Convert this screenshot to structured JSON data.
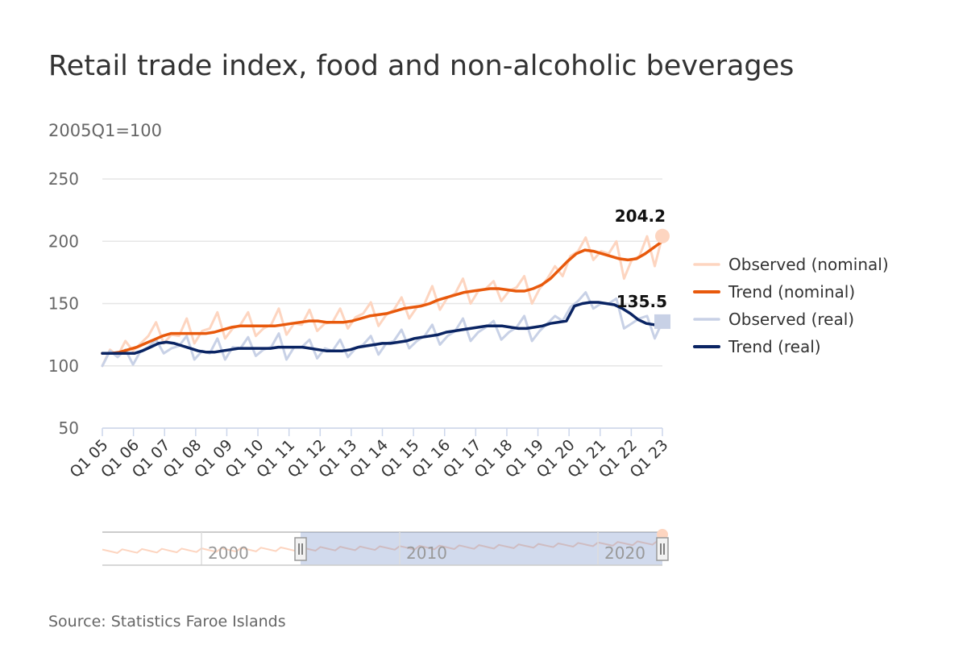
{
  "title": "Retail trade index, food and non-alcoholic beverages",
  "subtitle": "2005Q1=100",
  "source": "Source: Statistics Faroe Islands",
  "chart_data": {
    "type": "line",
    "title": "Retail trade index, food and non-alcoholic beverages",
    "ylabel": "2005Q1=100",
    "ylim": [
      50,
      250
    ],
    "yticks": [
      50,
      100,
      150,
      200,
      250
    ],
    "xlabels": [
      "Q1 05",
      "Q1 06",
      "Q1 07",
      "Q1 08",
      "Q1 09",
      "Q1 10",
      "Q1 11",
      "Q1 12",
      "Q1 13",
      "Q1 14",
      "Q1 15",
      "Q1 16",
      "Q1 17",
      "Q1 18",
      "Q1 19",
      "Q1 20",
      "Q1 21",
      "Q1 22",
      "Q1 23"
    ],
    "x_start_quarter": "2005Q1",
    "x_end_quarter": "2023Q1",
    "grid": true,
    "legend_position": "right",
    "series": [
      {
        "name": "Observed (nominal)",
        "color": "#fdd5c0",
        "width": 3,
        "values": [
          100,
          113,
          108,
          120,
          112,
          118,
          124,
          135,
          118,
          125,
          124,
          138,
          118,
          128,
          130,
          143,
          122,
          130,
          133,
          143,
          124,
          130,
          133,
          146,
          125,
          134,
          133,
          145,
          128,
          134,
          135,
          146,
          130,
          139,
          142,
          151,
          132,
          141,
          145,
          155,
          138,
          147,
          150,
          164,
          145,
          155,
          158,
          170,
          150,
          160,
          162,
          168,
          152,
          160,
          163,
          172,
          150,
          162,
          170,
          180,
          172,
          188,
          192,
          203,
          185,
          192,
          190,
          200,
          170,
          185,
          188,
          204,
          180,
          204.2
        ]
      },
      {
        "name": "Trend (nominal)",
        "color": "#e8590c",
        "width": 3.5,
        "values": [
          110,
          110,
          111,
          113,
          115,
          118,
          121,
          124,
          126,
          126,
          126,
          126,
          126,
          127,
          129,
          131,
          132,
          132,
          132,
          132,
          132,
          133,
          134,
          135,
          136,
          136,
          135,
          135,
          135,
          136,
          138,
          140,
          141,
          142,
          144,
          146,
          147,
          148,
          150,
          153,
          155,
          157,
          159,
          160,
          161,
          162,
          162,
          161,
          160,
          160,
          162,
          165,
          170,
          177,
          184,
          190,
          193,
          192,
          190,
          188,
          186,
          185,
          186,
          190,
          195,
          200
        ]
      },
      {
        "name": "Observed (real)",
        "color": "#c8d1e6",
        "width": 3,
        "values": [
          100,
          112,
          107,
          113,
          101,
          112,
          115,
          121,
          110,
          114,
          116,
          124,
          105,
          112,
          110,
          122,
          105,
          115,
          114,
          123,
          108,
          113,
          115,
          126,
          105,
          115,
          115,
          121,
          106,
          114,
          112,
          121,
          107,
          114,
          117,
          124,
          109,
          118,
          120,
          129,
          114,
          120,
          124,
          133,
          117,
          124,
          128,
          138,
          120,
          127,
          131,
          136,
          121,
          127,
          131,
          140,
          120,
          128,
          134,
          140,
          136,
          147,
          152,
          159,
          146,
          150,
          150,
          154,
          130,
          134,
          138,
          140,
          122,
          135.5
        ]
      },
      {
        "name": "Trend (real)",
        "color": "#0a2463",
        "width": 3.5,
        "values": [
          110,
          110,
          110,
          110,
          110,
          112,
          115,
          118,
          119,
          118,
          116,
          114,
          112,
          111,
          111,
          112,
          113,
          114,
          114,
          114,
          114,
          114,
          115,
          115,
          115,
          115,
          114,
          113,
          112,
          112,
          112,
          113,
          115,
          116,
          117,
          118,
          118,
          119,
          120,
          122,
          123,
          124,
          125,
          127,
          128,
          129,
          130,
          131,
          132,
          132,
          132,
          131,
          130,
          130,
          131,
          132,
          134,
          135,
          136,
          148,
          150,
          151,
          151,
          150,
          149,
          146,
          142,
          137,
          134,
          133,
          133
        ]
      }
    ],
    "data_labels": [
      {
        "series": "Observed (nominal)",
        "value": "204.2"
      },
      {
        "series": "Observed (real)",
        "value": "135.5"
      }
    ],
    "navigator": {
      "labels": [
        "2000",
        "2010",
        "2020"
      ],
      "range_from": "2005",
      "range_to": "2023"
    }
  }
}
